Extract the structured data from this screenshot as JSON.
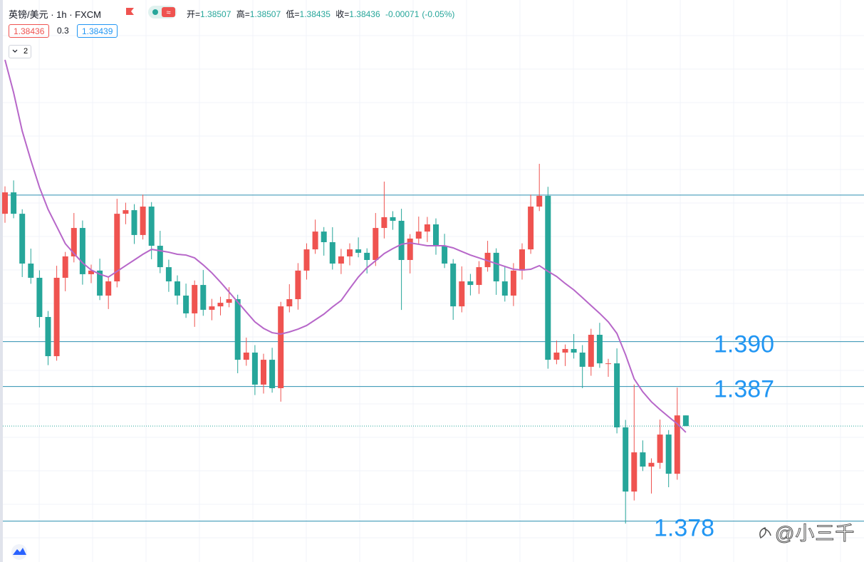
{
  "header": {
    "symbol": "英镑/美元 · 1h · FXCM",
    "ohlc": [
      {
        "label": "开=",
        "value": 1.38507
      },
      {
        "label": "高=",
        "value": 1.38507
      },
      {
        "label": "低=",
        "value": 1.38435
      },
      {
        "label": "收=",
        "value": 1.38436
      }
    ],
    "change": -0.00071,
    "change_pct": {
      "value": -0.05,
      "label": "(-0.05%)"
    },
    "bid": 1.38436,
    "spread": 0.3,
    "ask": 1.38439,
    "indicators": 2,
    "watermark": "@小三千"
  },
  "chart_data": {
    "type": "candlestick",
    "up_color": "#ef5350",
    "down_color": "#26a69a",
    "ylim": [
      1.37527,
      1.41284
    ],
    "open": [
      1.39855,
      1.39998,
      1.39855,
      1.39522,
      1.39427,
      1.39165,
      1.38903,
      1.39427,
      1.3957,
      1.3976,
      1.39451,
      1.39475,
      1.39308,
      1.39403,
      1.39855,
      1.39879,
      1.39713,
      1.39903,
      1.39641,
      1.39498,
      1.39403,
      1.39308,
      1.39189,
      1.39379,
      1.39213,
      1.39236,
      1.3926,
      1.39284,
      1.38879,
      1.38927,
      1.38713,
      1.38879,
      1.38689,
      1.39236,
      1.39284,
      1.39475,
      1.39617,
      1.39736,
      1.39665,
      1.39522,
      1.3957,
      1.39617,
      1.39594,
      1.39546,
      1.3976,
      1.39832,
      1.39808,
      1.39546,
      1.39689,
      1.39736,
      1.39784,
      1.39641,
      1.39522,
      1.39236,
      1.39403,
      1.39379,
      1.39498,
      1.39594,
      1.39403,
      1.39308,
      1.39475,
      1.39617,
      1.39903,
      1.39975,
      1.38879,
      1.38927,
      1.38951,
      1.38927,
      1.38832,
      1.39046,
      1.38855,
      1.38855,
      1.38427,
      1.37998,
      1.3826,
      1.38165,
      1.3819,
      1.38379,
      1.38117,
      1.38507
    ],
    "high": [
      1.40038,
      1.40078,
      1.39885,
      1.39622,
      1.39477,
      1.39205,
      1.39507,
      1.396,
      1.3986,
      1.3981,
      1.39515,
      1.39555,
      1.39433,
      1.39955,
      1.39929,
      1.39919,
      1.39983,
      1.39933,
      1.39741,
      1.39548,
      1.39443,
      1.39388,
      1.39409,
      1.39479,
      1.39286,
      1.393,
      1.39364,
      1.39314,
      1.39027,
      1.38977,
      1.38919,
      1.38959,
      1.39266,
      1.39384,
      1.39525,
      1.39657,
      1.39816,
      1.39766,
      1.39765,
      1.3962,
      1.39657,
      1.39697,
      1.39624,
      1.3986,
      1.4007,
      1.39872,
      1.39888,
      1.39719,
      1.39836,
      1.39834,
      1.39824,
      1.39721,
      1.39552,
      1.39503,
      1.39453,
      1.39538,
      1.39674,
      1.39624,
      1.39503,
      1.39525,
      1.39657,
      1.39983,
      1.40189,
      1.40035,
      1.39007,
      1.38981,
      1.39051,
      1.38977,
      1.39086,
      1.39126,
      1.38885,
      1.38955,
      1.38477,
      1.38713,
      1.3834,
      1.3822,
      1.38479,
      1.38409,
      1.38693,
      1.38507
    ],
    "low": [
      1.39795,
      1.39825,
      1.39432,
      1.39387,
      1.39095,
      1.38843,
      1.38873,
      1.39337,
      1.3953,
      1.39381,
      1.39391,
      1.39278,
      1.39218,
      1.39363,
      1.39785,
      1.39653,
      1.39683,
      1.39551,
      1.39458,
      1.39333,
      1.39248,
      1.39159,
      1.39099,
      1.39173,
      1.39143,
      1.39176,
      1.3923,
      1.38789,
      1.38839,
      1.38643,
      1.38653,
      1.38659,
      1.38599,
      1.39196,
      1.39214,
      1.39415,
      1.39587,
      1.39575,
      1.39482,
      1.39452,
      1.3951,
      1.39564,
      1.39456,
      1.39506,
      1.3969,
      1.39748,
      1.39212,
      1.39456,
      1.39649,
      1.39666,
      1.39581,
      1.39492,
      1.39146,
      1.39196,
      1.39309,
      1.39319,
      1.39468,
      1.39313,
      1.39268,
      1.39238,
      1.39415,
      1.39587,
      1.39873,
      1.38819,
      1.38849,
      1.38837,
      1.38887,
      1.38689,
      1.38772,
      1.38825,
      1.38765,
      1.38387,
      1.37784,
      1.37938,
      1.38135,
      1.37985,
      1.3815,
      1.38027,
      1.38077,
      1.38435
    ],
    "close": [
      1.39998,
      1.39855,
      1.39522,
      1.39427,
      1.39165,
      1.38903,
      1.39427,
      1.3957,
      1.3976,
      1.39451,
      1.39475,
      1.39308,
      1.39403,
      1.39855,
      1.39879,
      1.39713,
      1.39903,
      1.39641,
      1.39498,
      1.39403,
      1.39308,
      1.39189,
      1.39379,
      1.39213,
      1.39236,
      1.3926,
      1.39284,
      1.38879,
      1.38927,
      1.38713,
      1.38879,
      1.38689,
      1.39236,
      1.39284,
      1.39475,
      1.39617,
      1.39736,
      1.39665,
      1.39522,
      1.3957,
      1.39617,
      1.39594,
      1.39546,
      1.3976,
      1.39832,
      1.39808,
      1.39546,
      1.39689,
      1.39736,
      1.39784,
      1.39641,
      1.39522,
      1.39236,
      1.39403,
      1.39379,
      1.39498,
      1.39594,
      1.39403,
      1.39308,
      1.39475,
      1.39617,
      1.39903,
      1.39975,
      1.38879,
      1.38927,
      1.38951,
      1.38927,
      1.38832,
      1.39046,
      1.38855,
      1.38855,
      1.38427,
      1.37998,
      1.3826,
      1.38165,
      1.3819,
      1.38379,
      1.38117,
      1.38507,
      1.38436
    ],
    "ma": {
      "color": "#b767c9",
      "values": [
        1.40884,
        1.40665,
        1.40408,
        1.40213,
        1.40032,
        1.39884,
        1.3977,
        1.39655,
        1.39589,
        1.39527,
        1.39479,
        1.39451,
        1.39432,
        1.3947,
        1.39508,
        1.39546,
        1.39584,
        1.39617,
        1.39608,
        1.39598,
        1.39584,
        1.39579,
        1.3956,
        1.39513,
        1.3946,
        1.39398,
        1.39332,
        1.39265,
        1.39198,
        1.39132,
        1.39089,
        1.3906,
        1.39051,
        1.39065,
        1.39084,
        1.39108,
        1.39146,
        1.39184,
        1.39232,
        1.39275,
        1.39355,
        1.39432,
        1.39494,
        1.39541,
        1.39589,
        1.39622,
        1.39651,
        1.3966,
        1.39651,
        1.39641,
        1.39641,
        1.39641,
        1.39627,
        1.39603,
        1.39579,
        1.3956,
        1.39541,
        1.39522,
        1.39503,
        1.39484,
        1.39479,
        1.39484,
        1.39508,
        1.3947,
        1.39436,
        1.39389,
        1.39346,
        1.39294,
        1.39241,
        1.39189,
        1.39132,
        1.39055,
        1.38913,
        1.38751,
        1.38665,
        1.38598,
        1.38546,
        1.38498,
        1.38451,
        1.38394
      ]
    },
    "levels": [
      {
        "value": 1.3998
      },
      {
        "value": 1.39,
        "label": "1.390"
      },
      {
        "value": 1.387,
        "label": "1.387"
      },
      {
        "value": 1.378,
        "label": "1.378"
      }
    ],
    "level_color": "#2b8fb0"
  }
}
